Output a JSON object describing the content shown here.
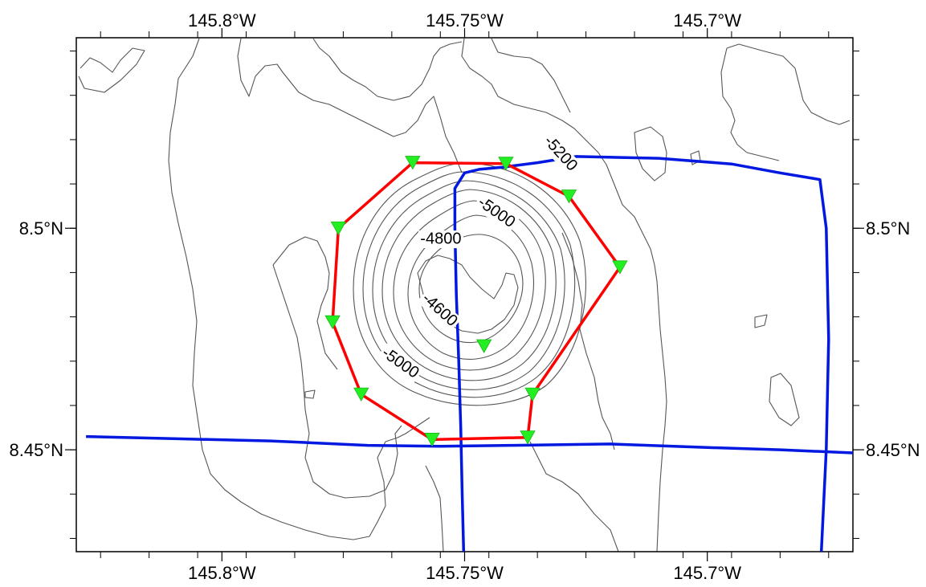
{
  "map": {
    "projection": "lon-lat",
    "lon_range": [
      -145.83,
      -145.67
    ],
    "lat_range": [
      8.427,
      8.543
    ],
    "colors": {
      "frame": "#000000",
      "contour": "#555555",
      "contour_index": "#000000",
      "ship_track": "#0018e0",
      "station_line": "#ff0000",
      "station_marker": "#22ee22"
    },
    "x_ticks": [
      {
        "lon": -145.8,
        "label": "145.8°W"
      },
      {
        "lon": -145.75,
        "label": "145.75°W"
      },
      {
        "lon": -145.7,
        "label": "145.7°W"
      }
    ],
    "y_ticks": [
      {
        "lat": 8.5,
        "label": "8.5°N"
      },
      {
        "lat": 8.45,
        "label": "8.45°N"
      }
    ],
    "contour_labels": [
      {
        "text": "-5200",
        "lon": -145.7303,
        "lat": 8.5168,
        "angle": 48
      },
      {
        "text": "-5000",
        "lon": -145.7435,
        "lat": 8.5035,
        "angle": 35
      },
      {
        "text": "-4800",
        "lon": -145.7549,
        "lat": 8.4975,
        "angle": 0
      },
      {
        "text": "-4600",
        "lon": -145.7552,
        "lat": 8.4815,
        "angle": 42
      },
      {
        "text": "-5000",
        "lon": -145.7633,
        "lat": 8.4695,
        "angle": 35
      }
    ],
    "stations": [
      {
        "lon": -145.7607,
        "lat": 8.5148
      },
      {
        "lon": -145.7415,
        "lat": 8.5146
      },
      {
        "lon": -145.7285,
        "lat": 8.5072
      },
      {
        "lon": -145.718,
        "lat": 8.4912
      },
      {
        "lon": -145.736,
        "lat": 8.4625
      },
      {
        "lon": -145.737,
        "lat": 8.4528
      },
      {
        "lon": -145.7567,
        "lat": 8.4523
      },
      {
        "lon": -145.7713,
        "lat": 8.4625
      },
      {
        "lon": -145.7772,
        "lat": 8.4788
      },
      {
        "lon": -145.776,
        "lat": 8.5
      },
      {
        "lon": -145.7607,
        "lat": 8.5148
      }
    ],
    "center_station": {
      "lon": -145.746,
      "lat": 8.4734
    },
    "ship_tracks": [
      [
        [
          -145.7502,
          8.427
        ],
        [
          -145.7505,
          8.44
        ],
        [
          -145.7508,
          8.455
        ],
        [
          -145.7512,
          8.47
        ],
        [
          -145.7517,
          8.485
        ],
        [
          -145.752,
          8.5
        ],
        [
          -145.752,
          8.509
        ],
        [
          -145.75,
          8.5125
        ],
        [
          -145.747,
          8.5133
        ],
        [
          -145.742,
          8.5138
        ],
        [
          -145.735,
          8.5148
        ],
        [
          -145.727,
          8.5162
        ],
        [
          -145.71,
          8.5158
        ],
        [
          -145.695,
          8.5145
        ],
        [
          -145.685,
          8.5125
        ],
        [
          -145.6768,
          8.511
        ],
        [
          -145.6755,
          8.5
        ],
        [
          -145.675,
          8.475
        ],
        [
          -145.6755,
          8.45
        ],
        [
          -145.6765,
          8.427
        ]
      ],
      [
        [
          -145.828,
          8.453
        ],
        [
          -145.81,
          8.4525
        ],
        [
          -145.79,
          8.452
        ],
        [
          -145.77,
          8.451
        ],
        [
          -145.755,
          8.4508
        ],
        [
          -145.74,
          8.451
        ],
        [
          -145.72,
          8.4513
        ],
        [
          -145.7,
          8.4505
        ],
        [
          -145.685,
          8.45
        ],
        [
          -145.67,
          8.4493
        ]
      ]
    ]
  }
}
